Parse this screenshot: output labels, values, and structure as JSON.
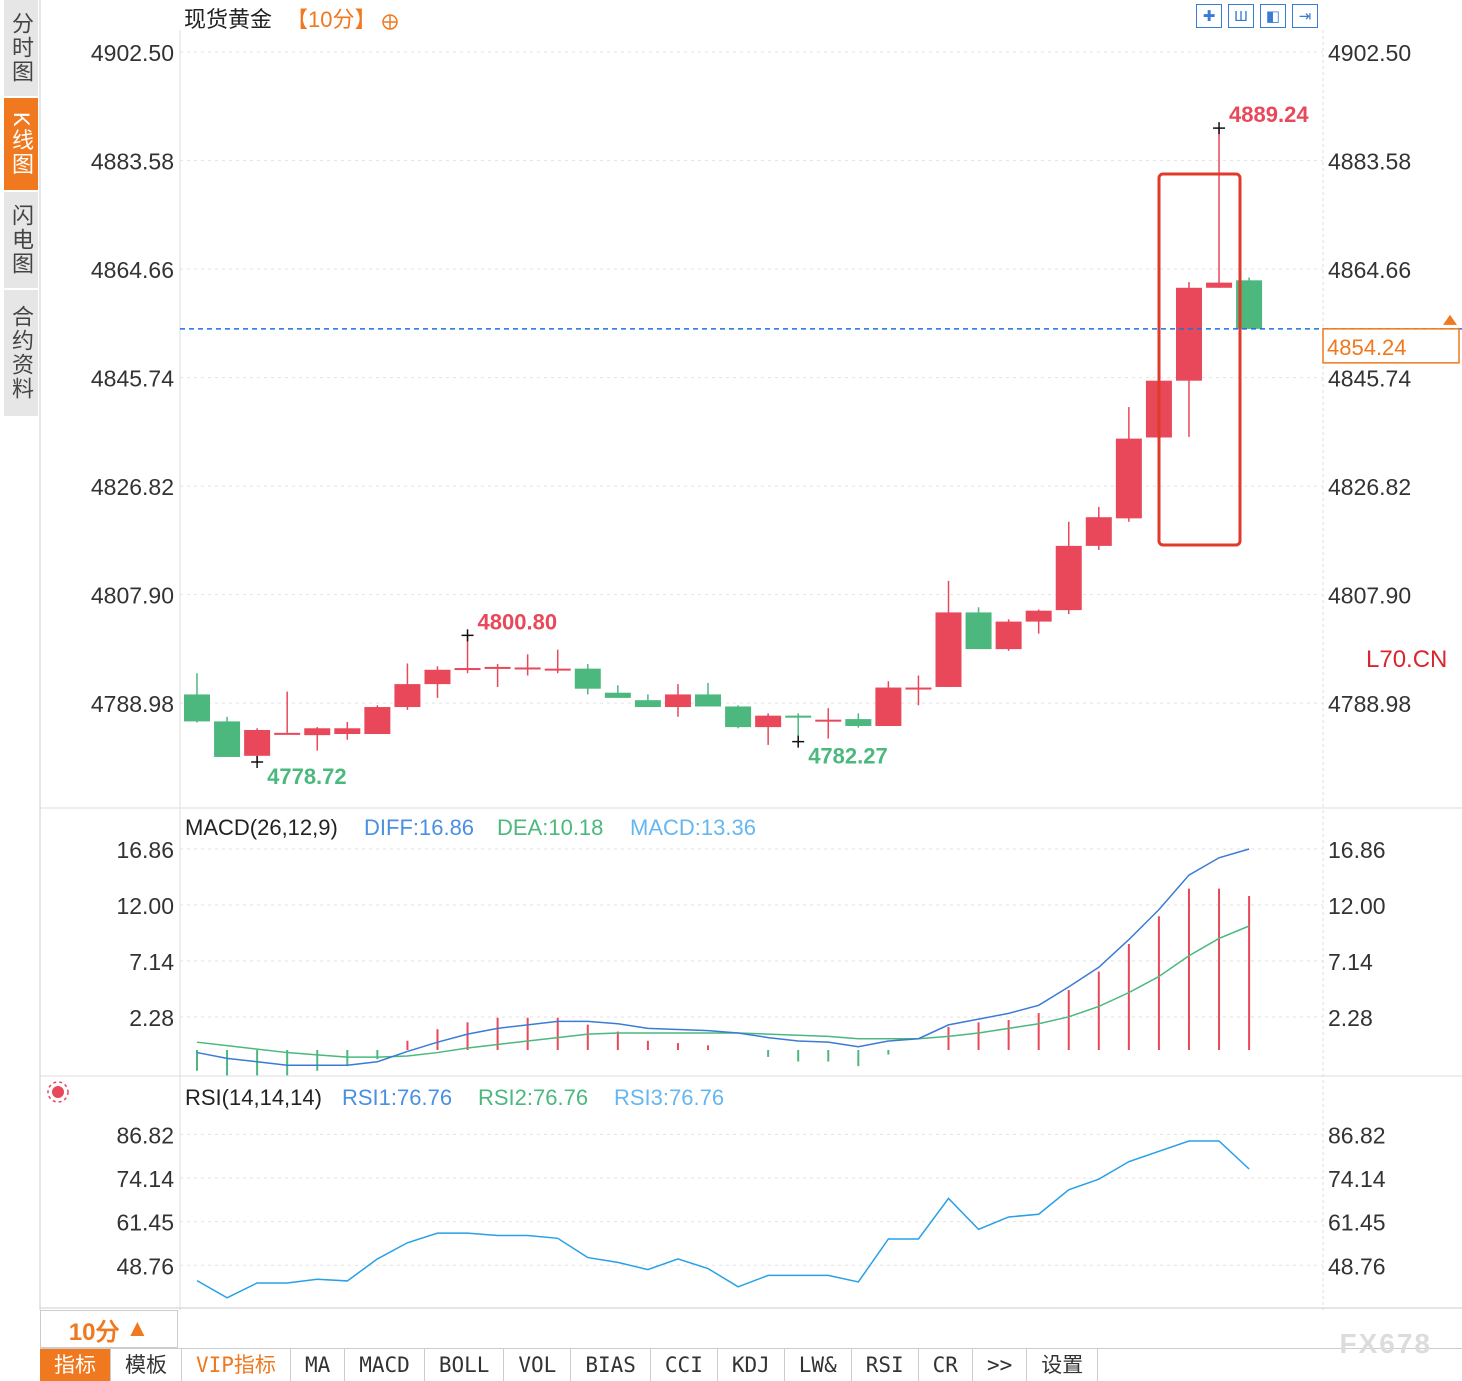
{
  "app": {
    "instrument": "现货黄金",
    "timeframe_label": "【10分】",
    "nav": [
      {
        "label": "分时图",
        "active": false
      },
      {
        "label": "K线图",
        "active": true
      },
      {
        "label": "闪电图",
        "active": false
      },
      {
        "label": "合约资料",
        "active": false
      }
    ],
    "toolbar_icons": [
      "crosshair-icon",
      "bar-zoom-in-icon",
      "bar-zoom-out-icon",
      "scroll-right-icon"
    ],
    "price_tag": "4854.24",
    "side_label": "L70.CN",
    "timeframe_box": "10分",
    "timeframe_arrow": "▲",
    "tabs": [
      {
        "label": "指标",
        "active": true
      },
      {
        "label": "模板"
      },
      {
        "label": "VIP指标",
        "vip": true
      },
      {
        "label": "MA"
      },
      {
        "label": "MACD"
      },
      {
        "label": "BOLL"
      },
      {
        "label": "VOL"
      },
      {
        "label": "BIAS"
      },
      {
        "label": "CCI"
      },
      {
        "label": "KDJ"
      },
      {
        "label": "LW&"
      },
      {
        "label": "RSI"
      },
      {
        "label": "CR"
      },
      {
        "label": ">>"
      },
      {
        "label": "设置"
      }
    ],
    "watermark": "FX678",
    "colors": {
      "up": "#e8485a",
      "down": "#4cb87e",
      "accent": "#f0781e",
      "price_line": "#1f6fe0",
      "highlight": "#e03a2a"
    }
  },
  "chart_data": [
    {
      "type": "candlestick",
      "y_ticks": [
        "4902.50",
        "4883.58",
        "4864.66",
        "4845.74",
        "4826.82",
        "4807.90",
        "4788.98"
      ],
      "ylim": [
        4770.7,
        4904.6
      ],
      "candles": [
        {
          "o": 4790.5,
          "h": 4794.2,
          "l": 4785.6,
          "c": 4785.8
        },
        {
          "o": 4785.8,
          "h": 4786.6,
          "l": 4779.6,
          "c": 4779.6
        },
        {
          "o": 4779.8,
          "h": 4784.6,
          "l": 4778.72,
          "c": 4784.3
        },
        {
          "o": 4783.8,
          "h": 4791.0,
          "l": 4783.8,
          "c": 4783.8
        },
        {
          "o": 4783.4,
          "h": 4784.8,
          "l": 4780.7,
          "c": 4784.6
        },
        {
          "o": 4783.6,
          "h": 4785.7,
          "l": 4782.6,
          "c": 4784.6
        },
        {
          "o": 4783.6,
          "h": 4788.6,
          "l": 4783.6,
          "c": 4788.3
        },
        {
          "o": 4788.3,
          "h": 4795.9,
          "l": 4787.8,
          "c": 4792.3
        },
        {
          "o": 4792.3,
          "h": 4795.4,
          "l": 4789.9,
          "c": 4794.8
        },
        {
          "o": 4794.9,
          "h": 4800.8,
          "l": 4794.2,
          "c": 4795.1
        },
        {
          "o": 4795.3,
          "h": 4795.8,
          "l": 4791.8,
          "c": 4795.3
        },
        {
          "o": 4794.9,
          "h": 4797.5,
          "l": 4793.8,
          "c": 4795.2
        },
        {
          "o": 4794.9,
          "h": 4798.3,
          "l": 4794.2,
          "c": 4795.0
        },
        {
          "o": 4795.0,
          "h": 4795.8,
          "l": 4790.5,
          "c": 4791.5
        },
        {
          "o": 4790.8,
          "h": 4792.1,
          "l": 4789.9,
          "c": 4789.9
        },
        {
          "o": 4789.5,
          "h": 4790.5,
          "l": 4788.3,
          "c": 4788.3
        },
        {
          "o": 4788.3,
          "h": 4792.3,
          "l": 4786.6,
          "c": 4790.5
        },
        {
          "o": 4790.5,
          "h": 4792.5,
          "l": 4788.4,
          "c": 4788.4
        },
        {
          "o": 4788.4,
          "h": 4788.6,
          "l": 4784.6,
          "c": 4784.8
        },
        {
          "o": 4784.8,
          "h": 4787.2,
          "l": 4781.7,
          "c": 4786.8
        },
        {
          "o": 4786.8,
          "h": 4787.2,
          "l": 4782.27,
          "c": 4786.6
        },
        {
          "o": 4786.1,
          "h": 4788.1,
          "l": 4782.8,
          "c": 4786.1
        },
        {
          "o": 4786.2,
          "h": 4787.2,
          "l": 4784.7,
          "c": 4785.0
        },
        {
          "o": 4785.0,
          "h": 4792.8,
          "l": 4785.0,
          "c": 4791.7
        },
        {
          "o": 4791.4,
          "h": 4793.8,
          "l": 4788.6,
          "c": 4791.7
        },
        {
          "o": 4791.8,
          "h": 4810.3,
          "l": 4791.8,
          "c": 4804.8
        },
        {
          "o": 4804.8,
          "h": 4805.7,
          "l": 4798.4,
          "c": 4798.4
        },
        {
          "o": 4798.4,
          "h": 4803.6,
          "l": 4798.1,
          "c": 4803.2
        },
        {
          "o": 4803.2,
          "h": 4805.3,
          "l": 4801.1,
          "c": 4805.1
        },
        {
          "o": 4805.2,
          "h": 4820.6,
          "l": 4804.5,
          "c": 4816.4
        },
        {
          "o": 4816.4,
          "h": 4823.2,
          "l": 4815.7,
          "c": 4821.4
        },
        {
          "o": 4821.2,
          "h": 4840.6,
          "l": 4820.6,
          "c": 4835.1
        },
        {
          "o": 4835.3,
          "h": 4847.7,
          "l": 4833.9,
          "c": 4845.2
        },
        {
          "o": 4845.2,
          "h": 4862.4,
          "l": 4835.4,
          "c": 4861.4
        },
        {
          "o": 4861.4,
          "h": 4889.24,
          "l": 4861.4,
          "c": 4862.3
        },
        {
          "o": 4862.7,
          "h": 4863.2,
          "l": 4854.24,
          "c": 4854.24
        }
      ],
      "annotations": [
        {
          "text": "4889.24",
          "kind": "high"
        },
        {
          "text": "4800.80",
          "kind": "high"
        },
        {
          "text": "4778.72",
          "kind": "low"
        },
        {
          "text": "4782.27",
          "kind": "low"
        }
      ],
      "last_price": 4854.24
    },
    {
      "type": "line",
      "title": "MACD(26,12,9)",
      "legend": [
        "DIFF:16.86",
        "DEA:10.18",
        "MACD:13.36"
      ],
      "y_ticks": [
        "16.86",
        "12.00",
        "7.14",
        "2.28"
      ],
      "ylim": [
        -2.4,
        16.86
      ],
      "series": [
        {
          "name": "DIFF",
          "values": [
            -0.8,
            -1.3,
            -1.6,
            -1.9,
            -1.9,
            -1.9,
            -1.6,
            -0.7,
            0.1,
            0.8,
            1.3,
            1.6,
            1.9,
            1.9,
            1.7,
            1.3,
            1.2,
            1.1,
            0.9,
            0.5,
            0.2,
            0.1,
            -0.3,
            0.2,
            0.4,
            1.6,
            2.1,
            2.6,
            3.3,
            4.9,
            6.6,
            9.0,
            11.6,
            14.6,
            16.1,
            16.86
          ]
        },
        {
          "name": "DEA",
          "values": [
            0.1,
            -0.2,
            -0.5,
            -0.8,
            -1.0,
            -1.2,
            -1.2,
            -1.1,
            -0.8,
            -0.4,
            -0.1,
            0.2,
            0.5,
            0.8,
            0.9,
            0.9,
            0.9,
            0.9,
            0.9,
            0.8,
            0.7,
            0.6,
            0.4,
            0.4,
            0.4,
            0.6,
            0.9,
            1.3,
            1.7,
            2.3,
            3.2,
            4.4,
            5.8,
            7.6,
            9.1,
            10.18
          ]
        },
        {
          "name": "MACD",
          "values": [
            -1.8,
            -2.2,
            -2.2,
            -2.2,
            -1.8,
            -1.4,
            -0.8,
            0.8,
            1.8,
            2.4,
            2.8,
            2.8,
            2.8,
            2.2,
            1.6,
            0.8,
            0.6,
            0.4,
            0.0,
            -0.6,
            -1.0,
            -1.0,
            -1.4,
            -0.4,
            0.0,
            2.0,
            2.4,
            2.6,
            3.2,
            5.2,
            6.8,
            9.2,
            11.6,
            14.0,
            14.0,
            13.36
          ]
        }
      ]
    },
    {
      "type": "line",
      "title": "RSI(14,14,14)",
      "legend": [
        "RSI1:76.76",
        "RSI2:76.76",
        "RSI3:76.76"
      ],
      "y_ticks": [
        "86.82",
        "74.14",
        "61.45",
        "48.76"
      ],
      "ylim": [
        37.2,
        91.3
      ],
      "series": [
        {
          "name": "RSI1",
          "values": [
            44.3,
            39.3,
            43.6,
            43.6,
            44.7,
            44.2,
            50.6,
            55.3,
            58.1,
            58.1,
            57.4,
            57.4,
            56.6,
            51.0,
            49.6,
            47.5,
            50.6,
            47.8,
            42.5,
            45.8,
            45.8,
            45.8,
            43.9,
            56.4,
            56.4,
            68.2,
            59.2,
            62.8,
            63.6,
            70.7,
            73.8,
            78.9,
            81.9,
            84.9,
            84.9,
            76.76
          ]
        }
      ]
    }
  ]
}
